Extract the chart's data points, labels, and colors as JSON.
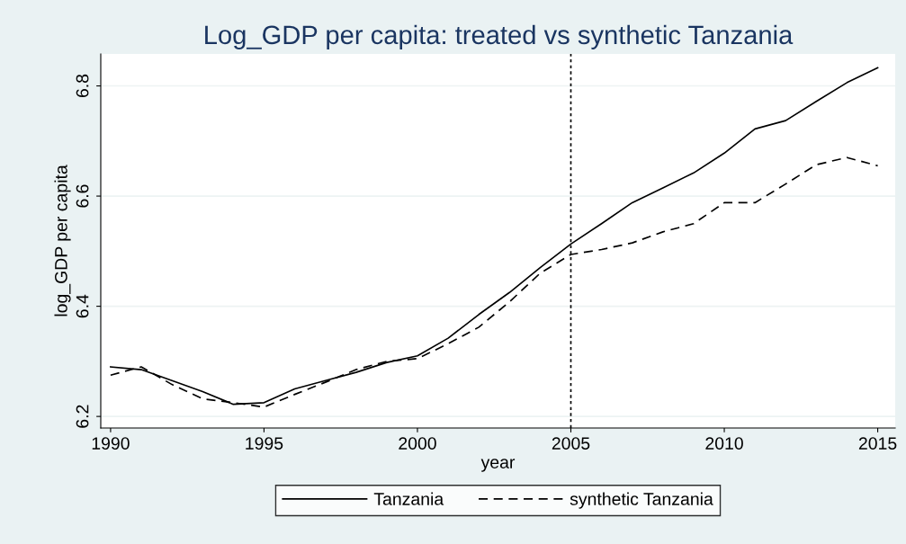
{
  "chart_data": {
    "type": "line",
    "title": "Log_GDP per capita: treated vs synthetic Tanzania",
    "xlabel": "year",
    "ylabel": "log_GDP per capita",
    "x": [
      1990,
      1991,
      1992,
      1993,
      1994,
      1995,
      1996,
      1997,
      1998,
      1999,
      2000,
      2001,
      2002,
      2003,
      2004,
      2005,
      2006,
      2007,
      2008,
      2009,
      2010,
      2011,
      2012,
      2013,
      2014,
      2015
    ],
    "series": [
      {
        "name": "Tanzania",
        "color": "#000000",
        "line_style": "solid",
        "values": [
          6.29,
          6.285,
          6.265,
          6.245,
          6.222,
          6.225,
          6.25,
          6.265,
          6.28,
          6.298,
          6.31,
          6.342,
          6.385,
          6.425,
          6.47,
          6.513,
          6.55,
          6.588,
          6.615,
          6.642,
          6.678,
          6.722,
          6.737,
          6.772,
          6.806,
          6.833
        ]
      },
      {
        "name": "synthetic Tanzania",
        "color": "#000000",
        "line_style": "dashed",
        "values": [
          6.275,
          6.29,
          6.258,
          6.232,
          6.225,
          6.217,
          6.24,
          6.262,
          6.285,
          6.3,
          6.305,
          6.332,
          6.362,
          6.408,
          6.46,
          6.494,
          6.503,
          6.515,
          6.535,
          6.55,
          6.588,
          6.588,
          6.622,
          6.657,
          6.67,
          6.655
        ]
      }
    ],
    "xlim": [
      1989.68,
      2015.57
    ],
    "ylim": [
      6.179,
      6.858
    ],
    "xticks": [
      1990,
      1995,
      2000,
      2005,
      2010,
      2015
    ],
    "yticks": [
      6.2,
      6.4,
      6.6,
      6.8
    ],
    "ref_lines": [
      {
        "axis": "x",
        "value": 2005,
        "color": "#000000",
        "line_style": "dotted"
      }
    ],
    "grid": "y",
    "legend": "bottom",
    "marker": "none"
  }
}
